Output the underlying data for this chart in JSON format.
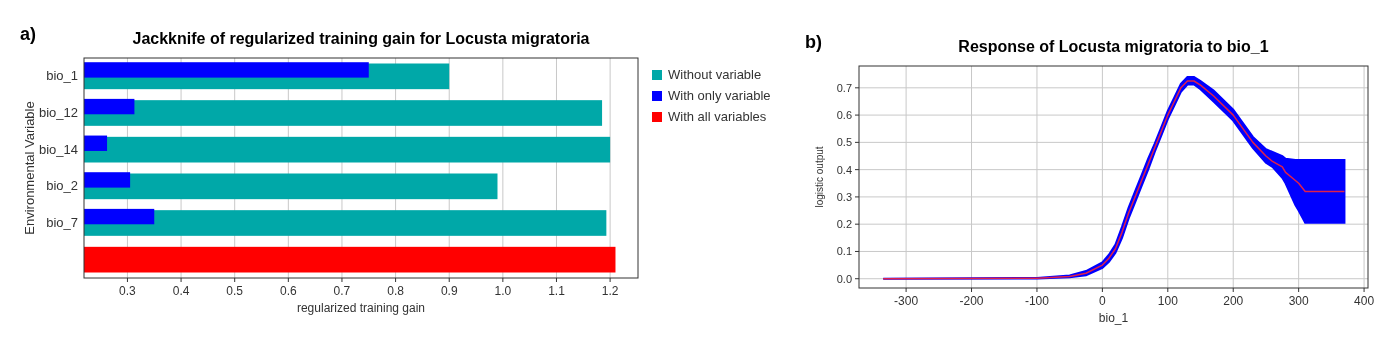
{
  "chart_data": [
    {
      "type": "bar",
      "orientation": "horizontal",
      "title": "Jackknife of regularized training gain for Locusta migratoria",
      "xlabel": "regularized training gain",
      "ylabel": "Environmental Variable",
      "annotations": [
        "a)"
      ],
      "categories": [
        "bio_1",
        "bio_12",
        "bio_14",
        "bio_2",
        "bio_7",
        null
      ],
      "series": [
        {
          "name": "Without variable",
          "color": "#00a8a8",
          "values": [
            0.9,
            1.185,
            1.2,
            0.99,
            1.193,
            null
          ]
        },
        {
          "name": "With only variable",
          "color": "#0000ff",
          "values": [
            0.75,
            0.313,
            0.262,
            0.305,
            0.35,
            null
          ]
        },
        {
          "name": "With all variables",
          "color": "#ff0000",
          "values": [
            null,
            null,
            null,
            null,
            null,
            1.21
          ]
        }
      ],
      "xlim": [
        0.219,
        1.252
      ],
      "xticks": [
        0.3,
        0.4,
        0.5,
        0.6,
        0.7,
        0.8,
        0.9,
        {
          "value": 1.0,
          "label": "1.0"
        },
        1.1,
        1.2
      ],
      "grid": "x",
      "legend": "right"
    },
    {
      "type": "line",
      "title": "Response of Locusta migratoria to bio_1",
      "xlabel": "bio_1",
      "ylabel": "logistic output",
      "annotations": [
        "b)"
      ],
      "series": [
        {
          "color": "#e0204a",
          "x": [
            -335,
            -100,
            -50,
            -25,
            0,
            10,
            20,
            30,
            40,
            50,
            60,
            70,
            80,
            90,
            100,
            110,
            120,
            130,
            140,
            150,
            170,
            200,
            230,
            250,
            260,
            275,
            280,
            295,
            300,
            310,
            370
          ],
          "values": [
            0,
            0.002,
            0.008,
            0.02,
            0.05,
            0.075,
            0.11,
            0.17,
            0.24,
            0.3,
            0.36,
            0.42,
            0.48,
            0.54,
            0.6,
            0.65,
            0.7,
            0.725,
            0.725,
            0.71,
            0.67,
            0.6,
            0.5,
            0.45,
            0.43,
            0.41,
            0.39,
            0.36,
            0.35,
            0.32,
            0.32
          ],
          "lower": [
            0,
            0.001,
            0.005,
            0.013,
            0.04,
            0.062,
            0.095,
            0.15,
            0.22,
            0.28,
            0.34,
            0.4,
            0.465,
            0.525,
            0.585,
            0.635,
            0.685,
            0.712,
            0.712,
            0.695,
            0.65,
            0.58,
            0.48,
            0.425,
            0.41,
            0.37,
            0.35,
            0.27,
            0.25,
            0.205,
            0.205
          ],
          "upper": [
            0,
            0.003,
            0.012,
            0.028,
            0.06,
            0.088,
            0.125,
            0.19,
            0.26,
            0.32,
            0.38,
            0.44,
            0.495,
            0.555,
            0.615,
            0.665,
            0.715,
            0.74,
            0.74,
            0.725,
            0.69,
            0.62,
            0.52,
            0.475,
            0.465,
            0.45,
            0.44,
            0.435,
            0.435,
            0.435,
            0.435
          ]
        }
      ],
      "xlim": [
        -372,
        406
      ],
      "xticks": [
        -300,
        -200,
        -100,
        0,
        100,
        200,
        300,
        400
      ],
      "ylim": [
        -0.034,
        0.78
      ],
      "yticks": [
        {
          "value": 0,
          "label": "0.0"
        },
        0.1,
        0.2,
        0.3,
        0.4,
        0.5,
        0.6,
        0.7
      ],
      "grid": true
    }
  ]
}
